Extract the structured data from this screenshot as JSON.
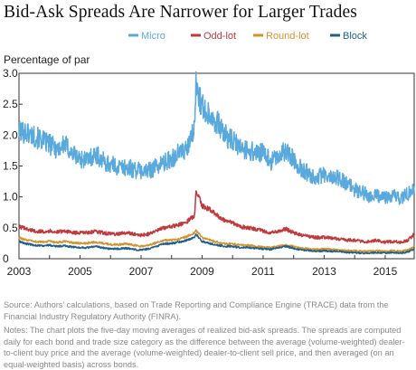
{
  "title": "Bid-Ask Spreads Are Narrower for Larger Trades",
  "source_text": "Source: Authors’ calculations, based on Trade Reporting and Compliance Engine (TRACE) data from the Financial Industry Regulatory Authority (FINRA).",
  "notes_text": "Notes: The chart plots the five-day moving averages of realized bid-ask spreads. The spreads are computed daily for each bond and trade size category as the difference between the average (volume-weighted) dealer-to-client buy price and the average (volume-weighted) dealer-to-client sell price, and then averaged (on an equal-weighted basis) across bonds.",
  "chart_data": {
    "type": "line",
    "title": "Bid-Ask Spreads Are Narrower for Larger Trades",
    "xlabel": "",
    "ylabel": "Percentage of par",
    "xlim": [
      2003,
      2015.95
    ],
    "ylim": [
      0,
      3.0
    ],
    "xticks": [
      "2003",
      "2005",
      "2007",
      "2009",
      "2011",
      "2013",
      "2015"
    ],
    "yticks": [
      "0",
      "0.5",
      "1.0",
      "1.5",
      "2.0",
      "2.5",
      "3.0"
    ],
    "grid": false,
    "legend_position": "top",
    "series": [
      {
        "name": "Micro",
        "color": "#5aa9dc",
        "x": [
          2003.0,
          2003.25,
          2003.5,
          2003.75,
          2004.0,
          2004.25,
          2004.5,
          2004.75,
          2005.0,
          2005.25,
          2005.5,
          2005.75,
          2006.0,
          2006.25,
          2006.5,
          2006.75,
          2007.0,
          2007.25,
          2007.5,
          2007.75,
          2008.0,
          2008.25,
          2008.5,
          2008.75,
          2008.8,
          2008.9,
          2009.0,
          2009.25,
          2009.5,
          2009.75,
          2010.0,
          2010.25,
          2010.5,
          2010.75,
          2011.0,
          2011.25,
          2011.5,
          2011.75,
          2012.0,
          2012.25,
          2012.5,
          2012.75,
          2013.0,
          2013.25,
          2013.5,
          2013.75,
          2014.0,
          2014.25,
          2014.5,
          2014.75,
          2015.0,
          2015.25,
          2015.5,
          2015.75,
          2015.95
        ],
        "y": [
          2.05,
          2.05,
          1.98,
          1.92,
          1.85,
          1.78,
          1.85,
          1.7,
          1.62,
          1.6,
          1.7,
          1.58,
          1.52,
          1.48,
          1.48,
          1.45,
          1.42,
          1.42,
          1.5,
          1.55,
          1.62,
          1.72,
          1.75,
          2.1,
          2.8,
          2.65,
          2.45,
          2.35,
          2.2,
          2.0,
          1.9,
          1.8,
          1.75,
          1.72,
          1.7,
          1.58,
          1.65,
          1.75,
          1.6,
          1.45,
          1.38,
          1.32,
          1.35,
          1.3,
          1.32,
          1.2,
          1.12,
          1.08,
          1.0,
          1.02,
          1.0,
          1.02,
          0.98,
          1.05,
          1.15
        ]
      },
      {
        "name": "Odd-lot",
        "color": "#c0393c",
        "x": [
          2003.0,
          2003.25,
          2003.5,
          2003.75,
          2004.0,
          2004.25,
          2004.5,
          2004.75,
          2005.0,
          2005.25,
          2005.5,
          2005.75,
          2006.0,
          2006.25,
          2006.5,
          2006.75,
          2007.0,
          2007.25,
          2007.5,
          2007.75,
          2008.0,
          2008.25,
          2008.5,
          2008.75,
          2008.8,
          2008.9,
          2009.0,
          2009.25,
          2009.5,
          2009.75,
          2010.0,
          2010.25,
          2010.5,
          2010.75,
          2011.0,
          2011.25,
          2011.5,
          2011.75,
          2012.0,
          2012.25,
          2012.5,
          2012.75,
          2013.0,
          2013.25,
          2013.5,
          2013.75,
          2014.0,
          2014.25,
          2014.5,
          2014.75,
          2015.0,
          2015.25,
          2015.5,
          2015.75,
          2015.95
        ],
        "y": [
          0.52,
          0.48,
          0.45,
          0.44,
          0.45,
          0.43,
          0.45,
          0.42,
          0.42,
          0.42,
          0.44,
          0.42,
          0.4,
          0.4,
          0.42,
          0.4,
          0.38,
          0.4,
          0.45,
          0.5,
          0.52,
          0.55,
          0.6,
          0.7,
          1.1,
          1.0,
          0.85,
          0.8,
          0.7,
          0.62,
          0.58,
          0.52,
          0.5,
          0.48,
          0.45,
          0.42,
          0.45,
          0.48,
          0.42,
          0.38,
          0.36,
          0.34,
          0.35,
          0.33,
          0.32,
          0.3,
          0.3,
          0.28,
          0.28,
          0.3,
          0.27,
          0.28,
          0.27,
          0.3,
          0.4
        ]
      },
      {
        "name": "Round-lot",
        "color": "#d4922a",
        "x": [
          2003.0,
          2003.25,
          2003.5,
          2003.75,
          2004.0,
          2004.25,
          2004.5,
          2004.75,
          2005.0,
          2005.25,
          2005.5,
          2005.75,
          2006.0,
          2006.25,
          2006.5,
          2006.75,
          2007.0,
          2007.25,
          2007.5,
          2007.75,
          2008.0,
          2008.25,
          2008.5,
          2008.75,
          2008.8,
          2008.9,
          2009.0,
          2009.25,
          2009.5,
          2009.75,
          2010.0,
          2010.25,
          2010.5,
          2010.75,
          2011.0,
          2011.25,
          2011.5,
          2011.75,
          2012.0,
          2012.25,
          2012.5,
          2012.75,
          2013.0,
          2013.25,
          2013.5,
          2013.75,
          2014.0,
          2014.25,
          2014.5,
          2014.75,
          2015.0,
          2015.25,
          2015.5,
          2015.75,
          2015.95
        ],
        "y": [
          0.34,
          0.3,
          0.28,
          0.27,
          0.28,
          0.26,
          0.28,
          0.26,
          0.25,
          0.25,
          0.27,
          0.25,
          0.23,
          0.23,
          0.24,
          0.22,
          0.2,
          0.22,
          0.26,
          0.3,
          0.3,
          0.32,
          0.36,
          0.42,
          0.45,
          0.4,
          0.34,
          0.3,
          0.27,
          0.24,
          0.24,
          0.22,
          0.22,
          0.2,
          0.19,
          0.18,
          0.2,
          0.22,
          0.2,
          0.17,
          0.16,
          0.15,
          0.16,
          0.15,
          0.14,
          0.13,
          0.13,
          0.12,
          0.12,
          0.13,
          0.12,
          0.13,
          0.12,
          0.14,
          0.2
        ]
      },
      {
        "name": "Block",
        "color": "#1f5f8b",
        "x": [
          2003.0,
          2003.25,
          2003.5,
          2003.75,
          2004.0,
          2004.25,
          2004.5,
          2004.75,
          2005.0,
          2005.25,
          2005.5,
          2005.75,
          2006.0,
          2006.25,
          2006.5,
          2006.75,
          2007.0,
          2007.25,
          2007.5,
          2007.75,
          2008.0,
          2008.25,
          2008.5,
          2008.75,
          2008.8,
          2008.9,
          2009.0,
          2009.25,
          2009.5,
          2009.75,
          2010.0,
          2010.25,
          2010.5,
          2010.75,
          2011.0,
          2011.25,
          2011.5,
          2011.75,
          2012.0,
          2012.25,
          2012.5,
          2012.75,
          2013.0,
          2013.25,
          2013.5,
          2013.75,
          2014.0,
          2014.25,
          2014.5,
          2014.75,
          2015.0,
          2015.25,
          2015.5,
          2015.75,
          2015.95
        ],
        "y": [
          0.28,
          0.24,
          0.22,
          0.21,
          0.22,
          0.2,
          0.21,
          0.19,
          0.18,
          0.18,
          0.2,
          0.18,
          0.16,
          0.16,
          0.17,
          0.15,
          0.14,
          0.16,
          0.2,
          0.24,
          0.25,
          0.27,
          0.3,
          0.35,
          0.4,
          0.34,
          0.28,
          0.25,
          0.22,
          0.2,
          0.2,
          0.18,
          0.18,
          0.17,
          0.16,
          0.15,
          0.18,
          0.2,
          0.17,
          0.14,
          0.13,
          0.12,
          0.13,
          0.12,
          0.12,
          0.1,
          0.1,
          0.09,
          0.09,
          0.1,
          0.09,
          0.1,
          0.09,
          0.11,
          0.16
        ]
      }
    ]
  }
}
